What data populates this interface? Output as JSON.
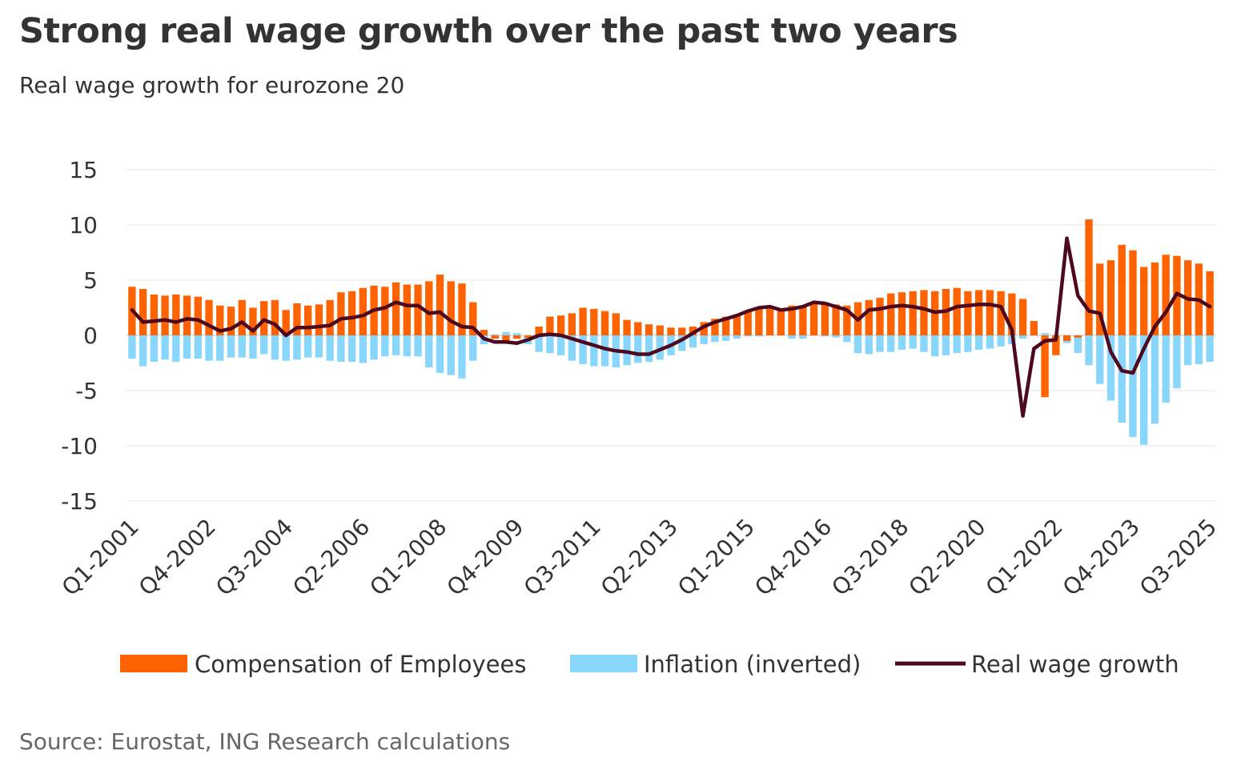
{
  "title": "Strong real wage growth over the past two years",
  "subtitle": "Real wage growth for eurozone 20",
  "source": "Source: Eurostat, ING Research calculations",
  "chart_data": {
    "type": "bar",
    "ylim": [
      -15,
      15
    ],
    "yticks": [
      "15",
      "10",
      "5",
      "0",
      "-5",
      "-10",
      "-15"
    ],
    "ytick_values": [
      15,
      10,
      5,
      0,
      -5,
      -10,
      -15
    ],
    "grid": true,
    "x_start": "Q1-2001",
    "n_quarters": 99,
    "xtick_labels": [
      "Q1-2001",
      "Q4-2002",
      "Q3-2004",
      "Q2-2006",
      "Q1-2008",
      "Q4-2009",
      "Q3-2011",
      "Q2-2013",
      "Q1-2015",
      "Q4-2016",
      "Q3-2018",
      "Q2-2020",
      "Q1-2022",
      "Q4-2023",
      "Q3-2025"
    ],
    "xtick_index": [
      0,
      7,
      14,
      21,
      28,
      35,
      42,
      49,
      56,
      63,
      70,
      77,
      84,
      91,
      98
    ],
    "legend_position": "bottom",
    "series": [
      {
        "name": "Compensation of Employees",
        "type": "bar",
        "color": "#FF6200",
        "values": [
          4.4,
          4.2,
          3.7,
          3.6,
          3.7,
          3.6,
          3.5,
          3.2,
          2.7,
          2.6,
          3.2,
          2.5,
          3.1,
          3.2,
          2.3,
          2.9,
          2.7,
          2.8,
          3.2,
          3.9,
          4.0,
          4.3,
          4.5,
          4.4,
          4.8,
          4.6,
          4.6,
          4.9,
          5.5,
          4.9,
          4.7,
          3.0,
          0.5,
          -0.3,
          -0.5,
          -0.3,
          -0.2,
          0.8,
          1.7,
          1.8,
          2.0,
          2.5,
          2.4,
          2.2,
          2.0,
          1.4,
          1.2,
          1.0,
          0.9,
          0.7,
          0.7,
          0.8,
          1.2,
          1.5,
          1.7,
          1.9,
          2.2,
          2.4,
          2.6,
          2.3,
          2.7,
          2.6,
          2.9,
          3.0,
          2.8,
          2.7,
          3.0,
          3.2,
          3.4,
          3.8,
          3.9,
          4.0,
          4.1,
          4.0,
          4.2,
          4.3,
          4.0,
          4.1,
          4.1,
          4.0,
          3.8,
          3.3,
          1.3,
          -5.6,
          -1.8,
          -0.5,
          -0.2,
          10.5,
          6.5,
          6.8,
          8.2,
          7.7,
          6.2,
          6.6,
          7.3,
          7.2,
          6.8,
          6.5,
          5.8
        ]
      },
      {
        "name": "Inflation (inverted)",
        "type": "bar",
        "color": "#89D6FD",
        "values": [
          -2.1,
          -2.8,
          -2.4,
          -2.2,
          -2.4,
          -2.1,
          -2.1,
          -2.3,
          -2.3,
          -2.0,
          -2.0,
          -2.1,
          -1.7,
          -2.2,
          -2.3,
          -2.2,
          -2.0,
          -2.0,
          -2.3,
          -2.4,
          -2.4,
          -2.5,
          -2.2,
          -1.9,
          -1.8,
          -1.9,
          -1.9,
          -2.9,
          -3.4,
          -3.6,
          -3.9,
          -2.3,
          -0.8,
          0.1,
          0.3,
          0.2,
          -0.8,
          -1.5,
          -1.6,
          -1.8,
          -2.3,
          -2.6,
          -2.8,
          -2.8,
          -2.9,
          -2.7,
          -2.5,
          -2.4,
          -2.2,
          -1.8,
          -1.4,
          -1.1,
          -0.8,
          -0.6,
          -0.5,
          -0.3,
          -0.1,
          -0.1,
          0.1,
          0.2,
          -0.3,
          -0.3,
          0.0,
          -0.1,
          -0.2,
          -0.6,
          -1.6,
          -1.7,
          -1.5,
          -1.5,
          -1.3,
          -1.2,
          -1.5,
          -1.9,
          -1.8,
          -1.6,
          -1.5,
          -1.3,
          -1.2,
          -1.0,
          -0.8,
          -0.3,
          0.0,
          0.2,
          0.0,
          -0.7,
          -1.6,
          -2.7,
          -4.4,
          -5.9,
          -7.9,
          -9.2,
          -9.9,
          -8.0,
          -6.1,
          -4.8,
          -2.7,
          -2.6,
          -2.4
        ]
      },
      {
        "name": "Real wage growth",
        "type": "line",
        "color": "#4D0A1F",
        "values": [
          2.3,
          1.2,
          1.3,
          1.4,
          1.2,
          1.5,
          1.4,
          0.9,
          0.4,
          0.6,
          1.2,
          0.4,
          1.4,
          1.0,
          0.0,
          0.7,
          0.7,
          0.8,
          0.9,
          1.5,
          1.6,
          1.8,
          2.3,
          2.5,
          3.0,
          2.7,
          2.7,
          2.0,
          2.1,
          1.3,
          0.8,
          0.7,
          -0.3,
          -0.6,
          -0.6,
          -0.7,
          -0.4,
          0.0,
          0.1,
          0.0,
          -0.3,
          -0.6,
          -0.9,
          -1.2,
          -1.4,
          -1.5,
          -1.7,
          -1.7,
          -1.3,
          -0.9,
          -0.4,
          0.2,
          0.8,
          1.2,
          1.5,
          1.8,
          2.2,
          2.5,
          2.6,
          2.3,
          2.4,
          2.6,
          3.0,
          2.9,
          2.6,
          2.3,
          1.4,
          2.3,
          2.4,
          2.6,
          2.7,
          2.6,
          2.4,
          2.1,
          2.2,
          2.6,
          2.7,
          2.8,
          2.8,
          2.6,
          0.5,
          -7.3,
          -1.2,
          -0.5,
          -0.4,
          8.8,
          3.6,
          2.2,
          2.0,
          -1.5,
          -3.2,
          -3.4,
          -1.2,
          0.8,
          2.1,
          3.8,
          3.3,
          3.2,
          2.6
        ]
      }
    ],
    "legend": [
      "Compensation of Employees",
      "Inflation (inverted)",
      "Real wage growth"
    ]
  }
}
